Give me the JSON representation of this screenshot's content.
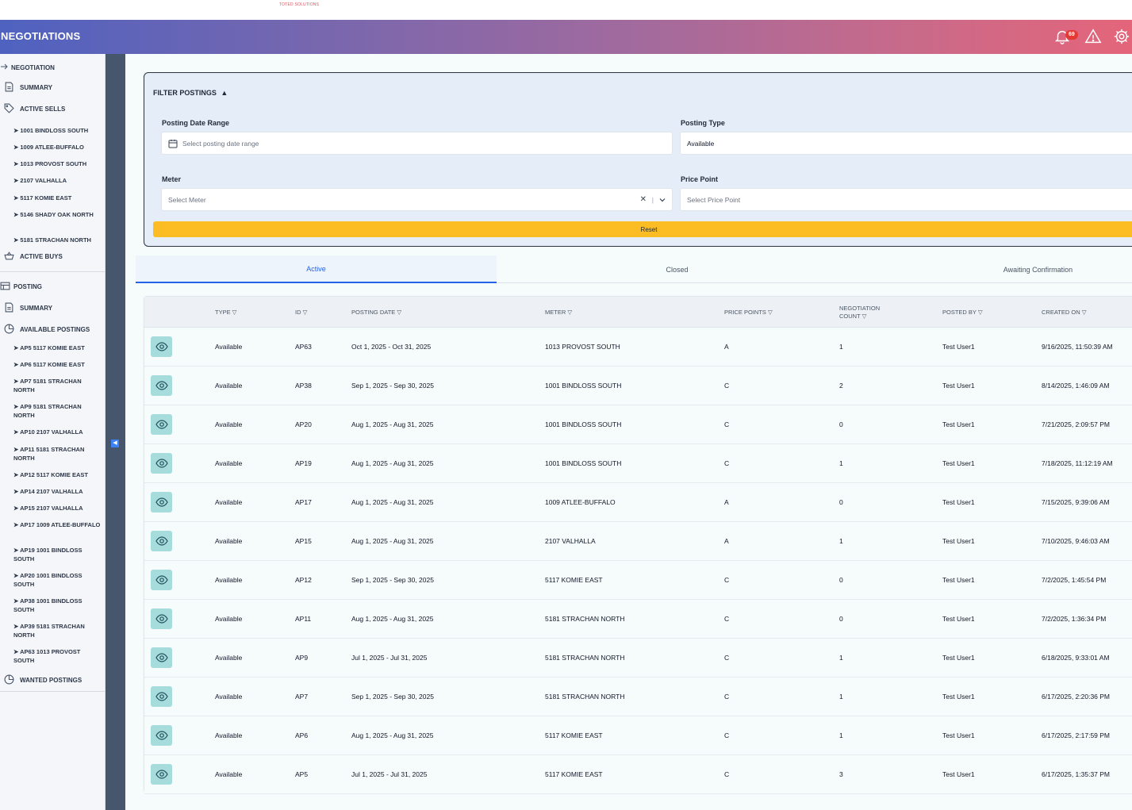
{
  "brand": {
    "tagline": "TOTED SOLUTIONS"
  },
  "header": {
    "title": "NEGOTIATIONS",
    "notification_count": "69"
  },
  "sidebar": {
    "negotiation": {
      "heading": "NEGOTIATION",
      "summary": "SUMMARY",
      "active_sells": "ACTIVE SELLS",
      "sells": [
        "➤ 1001 BINDLOSS SOUTH",
        "➤ 1009 ATLEE-BUFFALO",
        "➤ 1013 PROVOST SOUTH",
        "➤ 2107 VALHALLA",
        "➤ 5117 KOMIE EAST",
        "➤ 5146 SHADY OAK NORTH",
        "➤ 5181 STRACHAN NORTH"
      ],
      "active_buys": "ACTIVE BUYS"
    },
    "posting": {
      "heading": "POSTING",
      "summary": "SUMMARY",
      "available_postings": "AVAILABLE POSTINGS",
      "postings": [
        "➤ AP5 5117 KOMIE EAST",
        "➤ AP6 5117 KOMIE EAST",
        "➤ AP7 5181 STRACHAN NORTH",
        "➤ AP9 5181 STRACHAN NORTH",
        "➤ AP10 2107 VALHALLA",
        "➤ AP11 5181 STRACHAN NORTH",
        "➤ AP12 5117 KOMIE EAST",
        "➤ AP14 2107 VALHALLA",
        "➤ AP15 2107 VALHALLA",
        "➤ AP17 1009 ATLEE-BUFFALO",
        "➤ AP19 1001 BINDLOSS SOUTH",
        "➤ AP20 1001 BINDLOSS SOUTH",
        "➤ AP38 1001 BINDLOSS SOUTH",
        "➤ AP39 5181 STRACHAN NORTH",
        "➤ AP63 1013 PROVOST SOUTH"
      ],
      "wanted_postings": "WANTED POSTINGS"
    }
  },
  "filter": {
    "title": "FILTER POSTINGS",
    "date_range": {
      "label": "Posting Date Range",
      "placeholder": "Select posting date range"
    },
    "posting_type": {
      "label": "Posting Type",
      "value": "Available"
    },
    "meter": {
      "label": "Meter",
      "placeholder": "Select Meter"
    },
    "price_point": {
      "label": "Price Point",
      "placeholder": "Select Price Point"
    },
    "reset_label": "Reset"
  },
  "tabs": [
    "Active",
    "Closed",
    "Awaiting Confirmation"
  ],
  "table": {
    "columns": [
      "TYPE ▽",
      "ID ▽",
      "POSTING DATE ▽",
      "METER ▽",
      "PRICE POINTS ▽",
      "NEGOTIATION COUNT ▽",
      "POSTED BY ▽",
      "CREATED ON ▽"
    ],
    "rows": [
      [
        "Available",
        "AP63",
        "Oct 1, 2025 - Oct 31, 2025",
        "1013 PROVOST SOUTH",
        "A",
        "1",
        "Test User1",
        "9/16/2025, 11:50:39 AM"
      ],
      [
        "Available",
        "AP38",
        "Sep 1, 2025 - Sep 30, 2025",
        "1001 BINDLOSS SOUTH",
        "C",
        "2",
        "Test User1",
        "8/14/2025, 1:46:09 AM"
      ],
      [
        "Available",
        "AP20",
        "Aug 1, 2025 - Aug 31, 2025",
        "1001 BINDLOSS SOUTH",
        "C",
        "0",
        "Test User1",
        "7/21/2025, 2:09:57 PM"
      ],
      [
        "Available",
        "AP19",
        "Aug 1, 2025 - Aug 31, 2025",
        "1001 BINDLOSS SOUTH",
        "C",
        "1",
        "Test User1",
        "7/18/2025, 11:12:19 AM"
      ],
      [
        "Available",
        "AP17",
        "Aug 1, 2025 - Aug 31, 2025",
        "1009 ATLEE-BUFFALO",
        "A",
        "0",
        "Test User1",
        "7/15/2025, 9:39:06 AM"
      ],
      [
        "Available",
        "AP15",
        "Aug 1, 2025 - Aug 31, 2025",
        "2107 VALHALLA",
        "A",
        "1",
        "Test User1",
        "7/10/2025, 9:46:03 AM"
      ],
      [
        "Available",
        "AP12",
        "Sep 1, 2025 - Sep 30, 2025",
        "5117 KOMIE EAST",
        "C",
        "0",
        "Test User1",
        "7/2/2025, 1:45:54 PM"
      ],
      [
        "Available",
        "AP11",
        "Aug 1, 2025 - Aug 31, 2025",
        "5181 STRACHAN NORTH",
        "C",
        "0",
        "Test User1",
        "7/2/2025, 1:36:34 PM"
      ],
      [
        "Available",
        "AP9",
        "Jul 1, 2025 - Jul 31, 2025",
        "5181 STRACHAN NORTH",
        "C",
        "1",
        "Test User1",
        "6/18/2025, 9:33:01 AM"
      ],
      [
        "Available",
        "AP7",
        "Sep 1, 2025 - Sep 30, 2025",
        "5181 STRACHAN NORTH",
        "C",
        "1",
        "Test User1",
        "6/17/2025, 2:20:36 PM"
      ],
      [
        "Available",
        "AP6",
        "Aug 1, 2025 - Aug 31, 2025",
        "5117 KOMIE EAST",
        "C",
        "1",
        "Test User1",
        "6/17/2025, 2:17:59 PM"
      ],
      [
        "Available",
        "AP5",
        "Jul 1, 2025 - Jul 31, 2025",
        "5117 KOMIE EAST",
        "C",
        "3",
        "Test User1",
        "6/17/2025, 1:35:37 PM"
      ]
    ]
  }
}
